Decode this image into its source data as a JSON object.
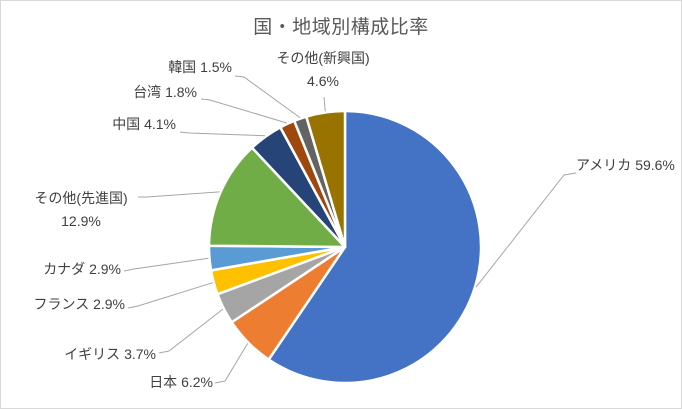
{
  "chart_data": {
    "type": "pie",
    "title": "国・地域別構成比率",
    "categories": [
      "アメリカ",
      "日本",
      "イギリス",
      "フランス",
      "カナダ",
      "その他(先進国)",
      "中国",
      "台湾",
      "韓国",
      "その他(新興国)"
    ],
    "values": [
      59.6,
      6.2,
      3.7,
      2.9,
      2.9,
      12.9,
      4.1,
      1.8,
      1.5,
      4.6
    ],
    "unit": "%",
    "labels": [
      "アメリカ 59.6%",
      "日本 6.2%",
      "イギリス 3.7%",
      "フランス 2.9%",
      "カナダ 2.9%",
      "その他(先進国)\n12.9%",
      "中国 4.1%",
      "台湾 1.8%",
      "韓国 1.5%",
      "その他(新興国)\n4.6%"
    ],
    "colors": [
      "#4472C4",
      "#ED7D31",
      "#A5A5A5",
      "#FFC000",
      "#5B9BD5",
      "#70AD47",
      "#264478",
      "#9E480E",
      "#636363",
      "#997300"
    ],
    "start_angle_deg": 0,
    "direction": "clockwise",
    "legend": "none",
    "label_position": "outside with leader lines"
  },
  "style": {
    "background_color": "#FFFFFF",
    "frame_border_color": "#D9D9D9",
    "title_color": "#595959",
    "label_color": "#404040",
    "leader_line_color": "#A6A6A6",
    "slice_border_color": "#FFFFFF"
  }
}
